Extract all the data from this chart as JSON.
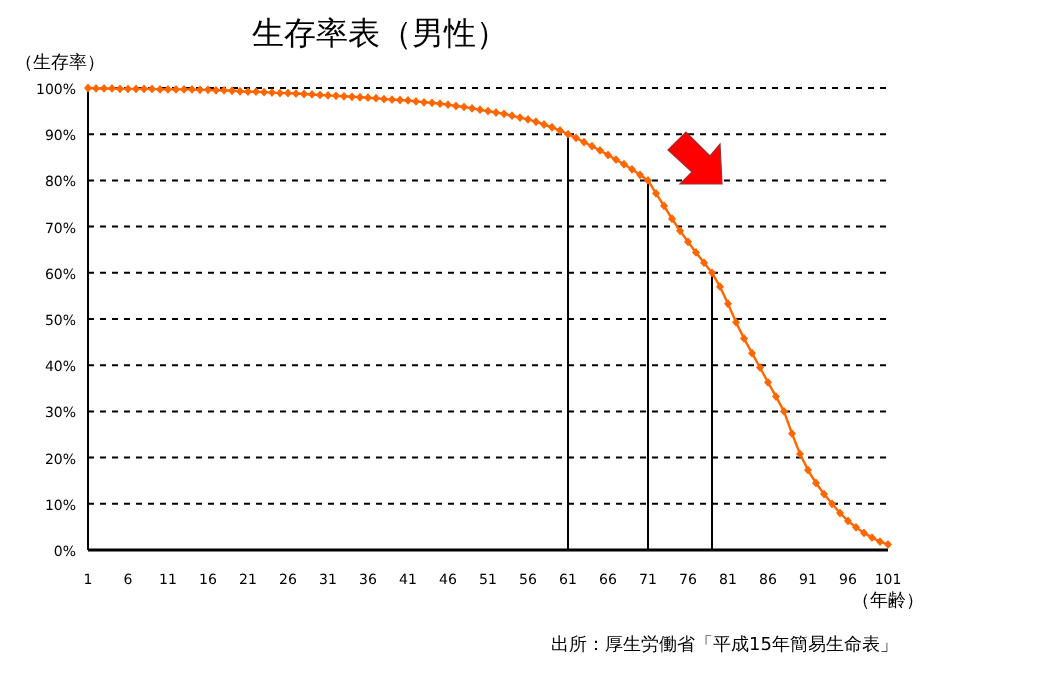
{
  "chart_data": {
    "type": "line",
    "title": "生存率表（男性）",
    "ylabel": "（生存率）",
    "xlabel": "（年齢）",
    "annotations": [
      "出所：厚生労働省「平成15年簡易生命表」"
    ],
    "x": [
      1,
      2,
      3,
      4,
      5,
      6,
      7,
      8,
      9,
      10,
      11,
      12,
      13,
      14,
      15,
      16,
      17,
      18,
      19,
      20,
      21,
      22,
      23,
      24,
      25,
      26,
      27,
      28,
      29,
      30,
      31,
      32,
      33,
      34,
      35,
      36,
      37,
      38,
      39,
      40,
      41,
      42,
      43,
      44,
      45,
      46,
      47,
      48,
      49,
      50,
      51,
      52,
      53,
      54,
      55,
      56,
      57,
      58,
      59,
      60,
      61,
      62,
      63,
      64,
      65,
      66,
      67,
      68,
      69,
      70,
      71,
      72,
      73,
      74,
      75,
      76,
      77,
      78,
      79,
      80,
      81,
      82,
      83,
      84,
      85,
      86,
      87,
      88,
      89,
      90,
      91,
      92,
      93,
      94,
      95,
      96,
      97,
      98,
      99,
      100,
      101
    ],
    "series": [
      {
        "color": "#ff6600",
        "values": [
          100,
          99.9,
          99.9,
          99.9,
          99.8,
          99.8,
          99.8,
          99.8,
          99.8,
          99.7,
          99.7,
          99.7,
          99.7,
          99.7,
          99.6,
          99.6,
          99.5,
          99.5,
          99.4,
          99.3,
          99.2,
          99.2,
          99.1,
          99.0,
          98.9,
          98.9,
          98.8,
          98.7,
          98.6,
          98.5,
          98.4,
          98.3,
          98.2,
          98.1,
          98.0,
          97.9,
          97.8,
          97.6,
          97.5,
          97.4,
          97.3,
          97.1,
          96.9,
          96.8,
          96.6,
          96.4,
          96.1,
          95.9,
          95.6,
          95.3,
          95.0,
          94.7,
          94.4,
          94.0,
          93.6,
          93.2,
          92.7,
          92.1,
          91.5,
          90.8,
          90.0,
          89.2,
          88.3,
          87.4,
          86.5,
          85.5,
          84.5,
          83.5,
          82.4,
          81.2,
          80.0,
          77.2,
          74.5,
          71.7,
          69.1,
          66.7,
          64.4,
          62.2,
          60.0,
          57.0,
          53.3,
          49.3,
          45.8,
          42.6,
          39.5,
          36.3,
          33.2,
          30.0,
          25.2,
          20.8,
          17.3,
          14.5,
          12.1,
          10.0,
          8.0,
          6.3,
          4.9,
          3.7,
          2.7,
          1.8,
          1.2
        ]
      }
    ],
    "xlim": [
      1,
      101
    ],
    "xticks": [
      1,
      6,
      11,
      16,
      21,
      26,
      31,
      36,
      41,
      46,
      51,
      56,
      61,
      66,
      71,
      76,
      81,
      86,
      91,
      96,
      101
    ],
    "ylim": [
      0,
      100
    ],
    "yticks": [
      {
        "value": 0,
        "label": "0%"
      },
      {
        "value": 10,
        "label": "10%"
      },
      {
        "value": 20,
        "label": "20%"
      },
      {
        "value": 30,
        "label": "30%"
      },
      {
        "value": 40,
        "label": "40%"
      },
      {
        "value": 50,
        "label": "50%"
      },
      {
        "value": 60,
        "label": "60%"
      },
      {
        "value": 70,
        "label": "70%"
      },
      {
        "value": 80,
        "label": "80%"
      },
      {
        "value": 90,
        "label": "90%"
      },
      {
        "value": 100,
        "label": "100%"
      }
    ],
    "grid": "y",
    "marker": "diamond",
    "line_style": "solid",
    "ref_lines": [
      {
        "axis": "x",
        "value": 61,
        "color": "#000000"
      },
      {
        "axis": "x",
        "value": 71,
        "color": "#000000"
      },
      {
        "axis": "x",
        "value": 79,
        "color": "#000000"
      }
    ]
  }
}
